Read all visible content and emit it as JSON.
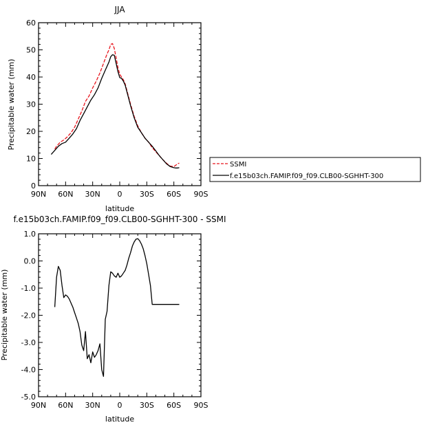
{
  "figure": {
    "panel_top_title": "JJA",
    "panel_bottom_title": "f.e15b03ch.FAMIP.f09_f09.CLB00-SGHHT-300 - SSMI"
  },
  "chart_data": [
    {
      "type": "line",
      "title": "JJA",
      "xlabel": "latitude",
      "ylabel": "Precipitable water (mm)",
      "x_ticks": [
        {
          "value": 90,
          "label": "90N"
        },
        {
          "value": 60,
          "label": "60N"
        },
        {
          "value": 30,
          "label": "30N"
        },
        {
          "value": 0,
          "label": "0"
        },
        {
          "value": -30,
          "label": "30S"
        },
        {
          "value": -60,
          "label": "60S"
        },
        {
          "value": -90,
          "label": "90S"
        }
      ],
      "xlim": [
        90,
        -90
      ],
      "ylim": [
        0,
        60
      ],
      "y_ticks": [
        0,
        10,
        20,
        30,
        40,
        50,
        60
      ],
      "y_tick_labels": [
        "0",
        "10",
        "20",
        "30",
        "40",
        "50",
        "60"
      ],
      "legend_position": "right",
      "series": [
        {
          "name": "SSMI",
          "color": "#e8141c",
          "dash": "dashed",
          "x": [
            72,
            70,
            66,
            62,
            58,
            54,
            50,
            46,
            42,
            38,
            34,
            30,
            26,
            22,
            18,
            14,
            12,
            10,
            8,
            6,
            4,
            2,
            0,
            -2,
            -4,
            -6,
            -8,
            -12,
            -16,
            -20,
            -24,
            -28,
            -32,
            -36,
            -40,
            -44,
            -48,
            -52,
            -56,
            -60,
            -62,
            -64,
            -66
          ],
          "y": [
            13.5,
            14.5,
            16.0,
            16.8,
            18.0,
            19.5,
            21.5,
            24.5,
            27.5,
            31.0,
            33.0,
            36.0,
            38.5,
            41.5,
            45.0,
            48.5,
            50.0,
            52.0,
            52.3,
            50.5,
            47.0,
            43.5,
            41.0,
            40.0,
            39.0,
            37.5,
            35.0,
            30.0,
            25.5,
            22.0,
            19.5,
            17.5,
            16.0,
            14.0,
            12.5,
            11.0,
            9.5,
            8.2,
            7.2,
            7.0,
            7.5,
            8.0,
            8.3
          ]
        },
        {
          "name": "f.e15b03ch.FAMIP.f09_f09.CLB00-SGHHT-300",
          "color": "#000000",
          "dash": "solid",
          "x": [
            76,
            72,
            68,
            64,
            60,
            56,
            52,
            48,
            44,
            40,
            36,
            32,
            28,
            24,
            20,
            16,
            12,
            10,
            8,
            6,
            4,
            2,
            0,
            -2,
            -4,
            -6,
            -8,
            -12,
            -16,
            -20,
            -24,
            -28,
            -32,
            -36,
            -40,
            -44,
            -48,
            -52,
            -56,
            -60,
            -62,
            -64,
            -66
          ],
          "y": [
            11.5,
            13.0,
            14.5,
            15.5,
            16.0,
            17.5,
            19.0,
            21.0,
            24.0,
            26.5,
            29.0,
            31.5,
            33.5,
            36.0,
            39.5,
            42.5,
            45.5,
            47.5,
            48.2,
            48.0,
            45.0,
            42.0,
            39.8,
            39.5,
            38.5,
            37.0,
            34.5,
            29.5,
            25.0,
            21.5,
            19.5,
            17.5,
            16.0,
            14.5,
            12.8,
            11.0,
            9.5,
            8.0,
            7.0,
            6.6,
            6.5,
            6.5,
            6.6
          ]
        }
      ]
    },
    {
      "type": "line",
      "title": "f.e15b03ch.FAMIP.f09_f09.CLB00-SGHHT-300 - SSMI",
      "xlabel": "latitude",
      "ylabel": "Precipitable water (mm)",
      "x_ticks": [
        {
          "value": 90,
          "label": "90N"
        },
        {
          "value": 60,
          "label": "60N"
        },
        {
          "value": 30,
          "label": "30N"
        },
        {
          "value": 0,
          "label": "0"
        },
        {
          "value": -30,
          "label": "30S"
        },
        {
          "value": -60,
          "label": "60S"
        },
        {
          "value": -90,
          "label": "90S"
        }
      ],
      "xlim": [
        90,
        -90
      ],
      "ylim": [
        -5,
        1
      ],
      "y_ticks": [
        -5,
        -4,
        -3,
        -2,
        -1,
        0,
        1
      ],
      "y_tick_labels": [
        "-5.0",
        "-4.0",
        "-3.0",
        "-2.0",
        "-1.0",
        "0.0",
        "1.0"
      ],
      "series": [
        {
          "name": "",
          "color": "#000000",
          "dash": "solid",
          "x": [
            72,
            70,
            68,
            66,
            64,
            62,
            60,
            58,
            56,
            54,
            52,
            50,
            48,
            46,
            44,
            42,
            40,
            38,
            36,
            34,
            32,
            30,
            28,
            26,
            24,
            22,
            20,
            18,
            16,
            14,
            12,
            10,
            8,
            6,
            4,
            2,
            0,
            -2,
            -4,
            -6,
            -8,
            -10,
            -12,
            -14,
            -16,
            -18,
            -20,
            -22,
            -24,
            -26,
            -28,
            -30,
            -32,
            -34,
            -36,
            -38,
            -40,
            -42,
            -44,
            -46,
            -48,
            -50,
            -52,
            -54,
            -56,
            -58,
            -60,
            -62,
            -64,
            -66
          ],
          "y": [
            -1.7,
            -0.6,
            -0.2,
            -0.35,
            -0.9,
            -1.35,
            -1.25,
            -1.3,
            -1.4,
            -1.55,
            -1.7,
            -1.9,
            -2.1,
            -2.3,
            -2.6,
            -3.1,
            -3.3,
            -2.6,
            -3.6,
            -3.45,
            -3.75,
            -3.35,
            -3.55,
            -3.45,
            -3.3,
            -3.05,
            -4.0,
            -4.25,
            -2.15,
            -1.85,
            -0.9,
            -0.4,
            -0.45,
            -0.55,
            -0.6,
            -0.45,
            -0.6,
            -0.55,
            -0.45,
            -0.35,
            -0.15,
            0.1,
            0.3,
            0.55,
            0.7,
            0.8,
            0.82,
            0.75,
            0.62,
            0.45,
            0.2,
            -0.1,
            -0.5,
            -0.9,
            -1.6,
            -1.6,
            -1.6,
            -1.6,
            -1.6,
            -1.6,
            -1.6,
            -1.6,
            -1.6,
            -1.6,
            -1.6,
            -1.6,
            -1.6,
            -1.6,
            -1.6,
            -1.6
          ]
        }
      ]
    }
  ]
}
